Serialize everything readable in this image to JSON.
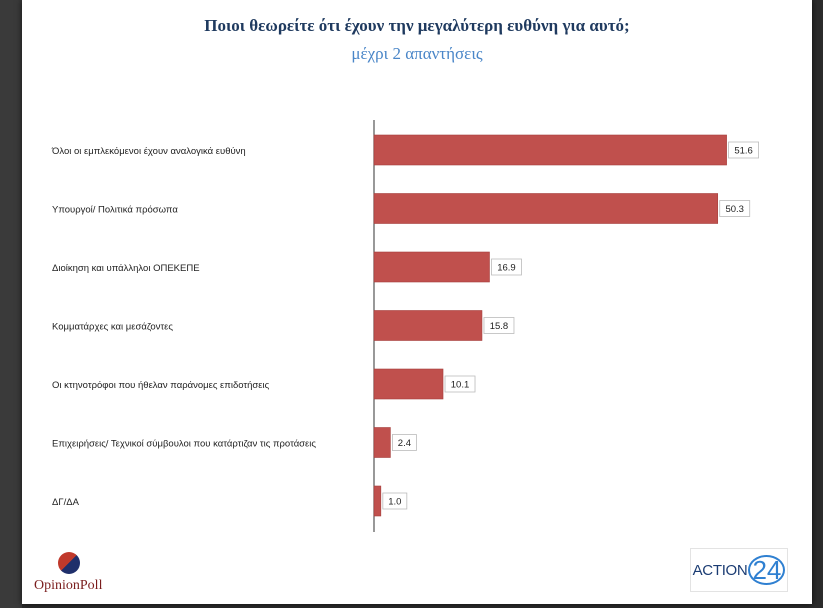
{
  "chart_data": {
    "type": "bar",
    "orientation": "horizontal",
    "title": "Ποιοι θεωρείτε ότι έχουν την μεγαλύτερη ευθύνη για αυτό;",
    "subtitle": "μέχρι 2 απαντήσεις",
    "categories": [
      "Όλοι οι εμπλεκόμενοι έχουν αναλογικά ευθύνη",
      "Υπουργοί/ Πολιτικά πρόσωπα",
      "Διοίκηση και υπάλληλοι ΟΠΕΚΕΠΕ",
      "Κομματάρχες και μεσάζοντες",
      "Οι κτηνοτρόφοι που ήθελαν παράνομες επιδοτήσεις",
      "Επιχειρήσεις/ Τεχνικοί σύμβουλοι που κατάρτιζαν τις προτάσεις",
      "ΔΓ/ΔΑ"
    ],
    "values": [
      51.6,
      50.3,
      16.9,
      15.8,
      10.1,
      2.4,
      1.0
    ],
    "value_labels": [
      "51.6",
      "50.3",
      "16.9",
      "15.8",
      "10.1",
      "2.4",
      "1.0"
    ],
    "xlim": [
      0,
      60
    ],
    "grid": false,
    "bar_color": "#c0504d"
  },
  "logos": {
    "left_text": "OpinionPoll",
    "right_word": "ACTION",
    "right_number": "24"
  }
}
